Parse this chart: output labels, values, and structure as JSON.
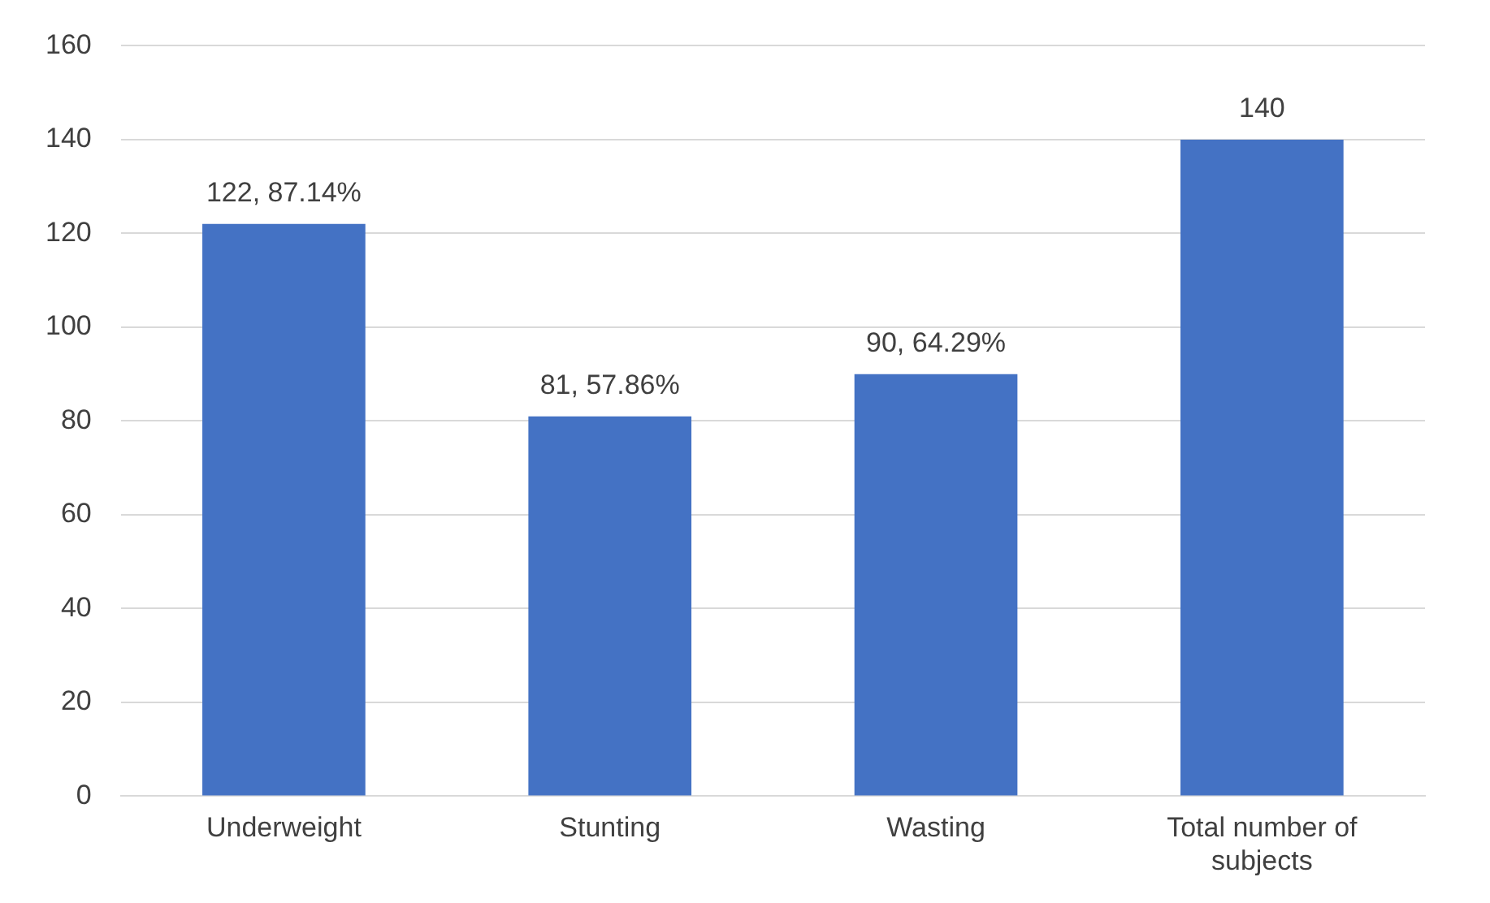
{
  "chart_data": {
    "type": "bar",
    "categories": [
      "Underweight",
      "Stunting",
      "Wasting",
      "Total number of subjects"
    ],
    "values": [
      122,
      81,
      90,
      140
    ],
    "value_labels": [
      "122, 87.14%",
      "81, 57.86%",
      "90, 64.29%",
      "140"
    ],
    "color": "#4472c4",
    "ylim": [
      0,
      160
    ],
    "yticks": [
      0,
      20,
      40,
      60,
      80,
      100,
      120,
      140,
      160
    ],
    "grid": "y",
    "legend": false
  }
}
